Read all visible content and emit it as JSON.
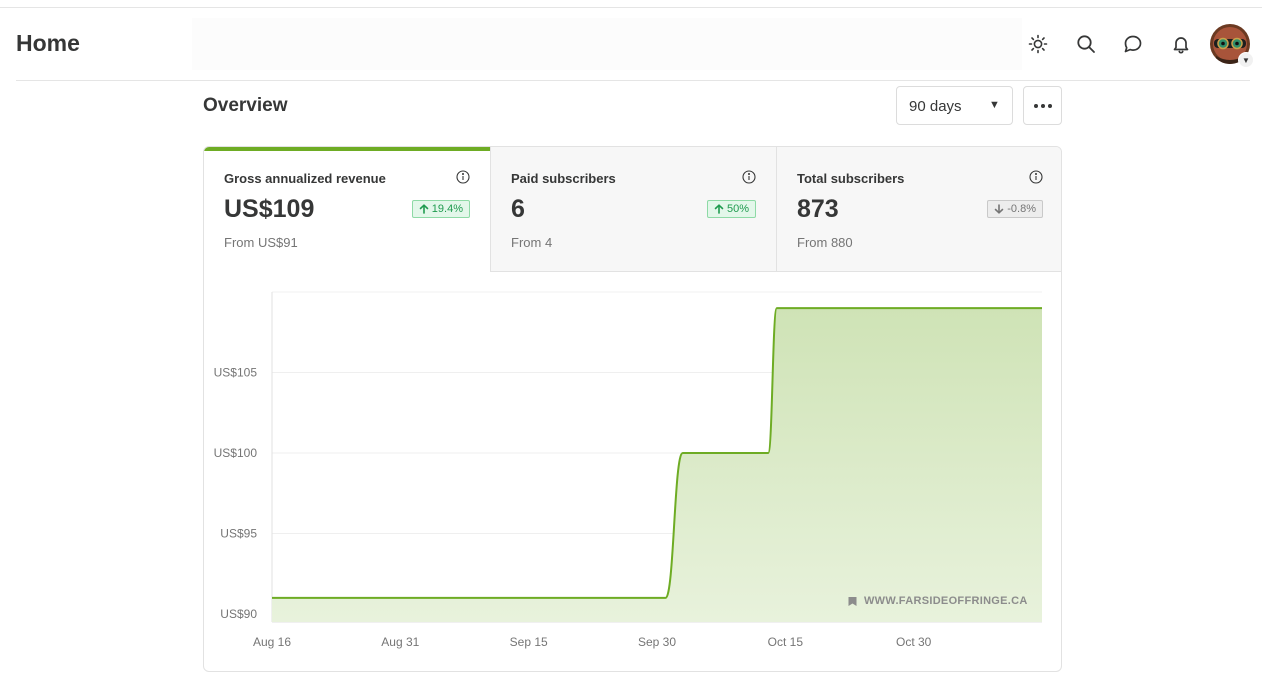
{
  "header": {
    "title": "Home",
    "icons": [
      "sun-icon",
      "search-icon",
      "chat-icon",
      "bell-icon"
    ]
  },
  "overview": {
    "title": "Overview",
    "range_select": {
      "value": "90 days"
    }
  },
  "metrics": [
    {
      "label": "Gross annualized revenue",
      "value": "US$109",
      "change": "19.4%",
      "direction": "up",
      "from": "From US$91",
      "active": true
    },
    {
      "label": "Paid subscribers",
      "value": "6",
      "change": "50%",
      "direction": "up",
      "from": "From 4",
      "active": false
    },
    {
      "label": "Total subscribers",
      "value": "873",
      "change": "-0.8%",
      "direction": "down",
      "from": "From 880",
      "active": false
    }
  ],
  "colors": {
    "accent": "#6eac24",
    "area_fill": "#d3e6bd",
    "badge_up_text": "#1f9b4f",
    "badge_down_text": "#757575"
  },
  "chart_data": {
    "type": "area",
    "title": "",
    "xlabel": "",
    "ylabel": "",
    "x_ticks": [
      "Aug 16",
      "Aug 31",
      "Sep 15",
      "Sep 30",
      "Oct 15",
      "Oct 30"
    ],
    "y_ticks": [
      "US$90",
      "US$95",
      "US$100",
      "US$105"
    ],
    "ylim": [
      89.5,
      110
    ],
    "grid": true,
    "series": [
      {
        "points": [
          {
            "x": "Aug 16",
            "y": 91
          },
          {
            "x": "Oct 1",
            "y": 91
          },
          {
            "x": "Oct 3",
            "y": 100
          },
          {
            "x": "Oct 13",
            "y": 100
          },
          {
            "x": "Oct 14",
            "y": 109
          },
          {
            "x": "Nov 14",
            "y": 109
          }
        ]
      }
    ],
    "watermark": "WWW.FARSIDEOFFRINGE.CA"
  }
}
